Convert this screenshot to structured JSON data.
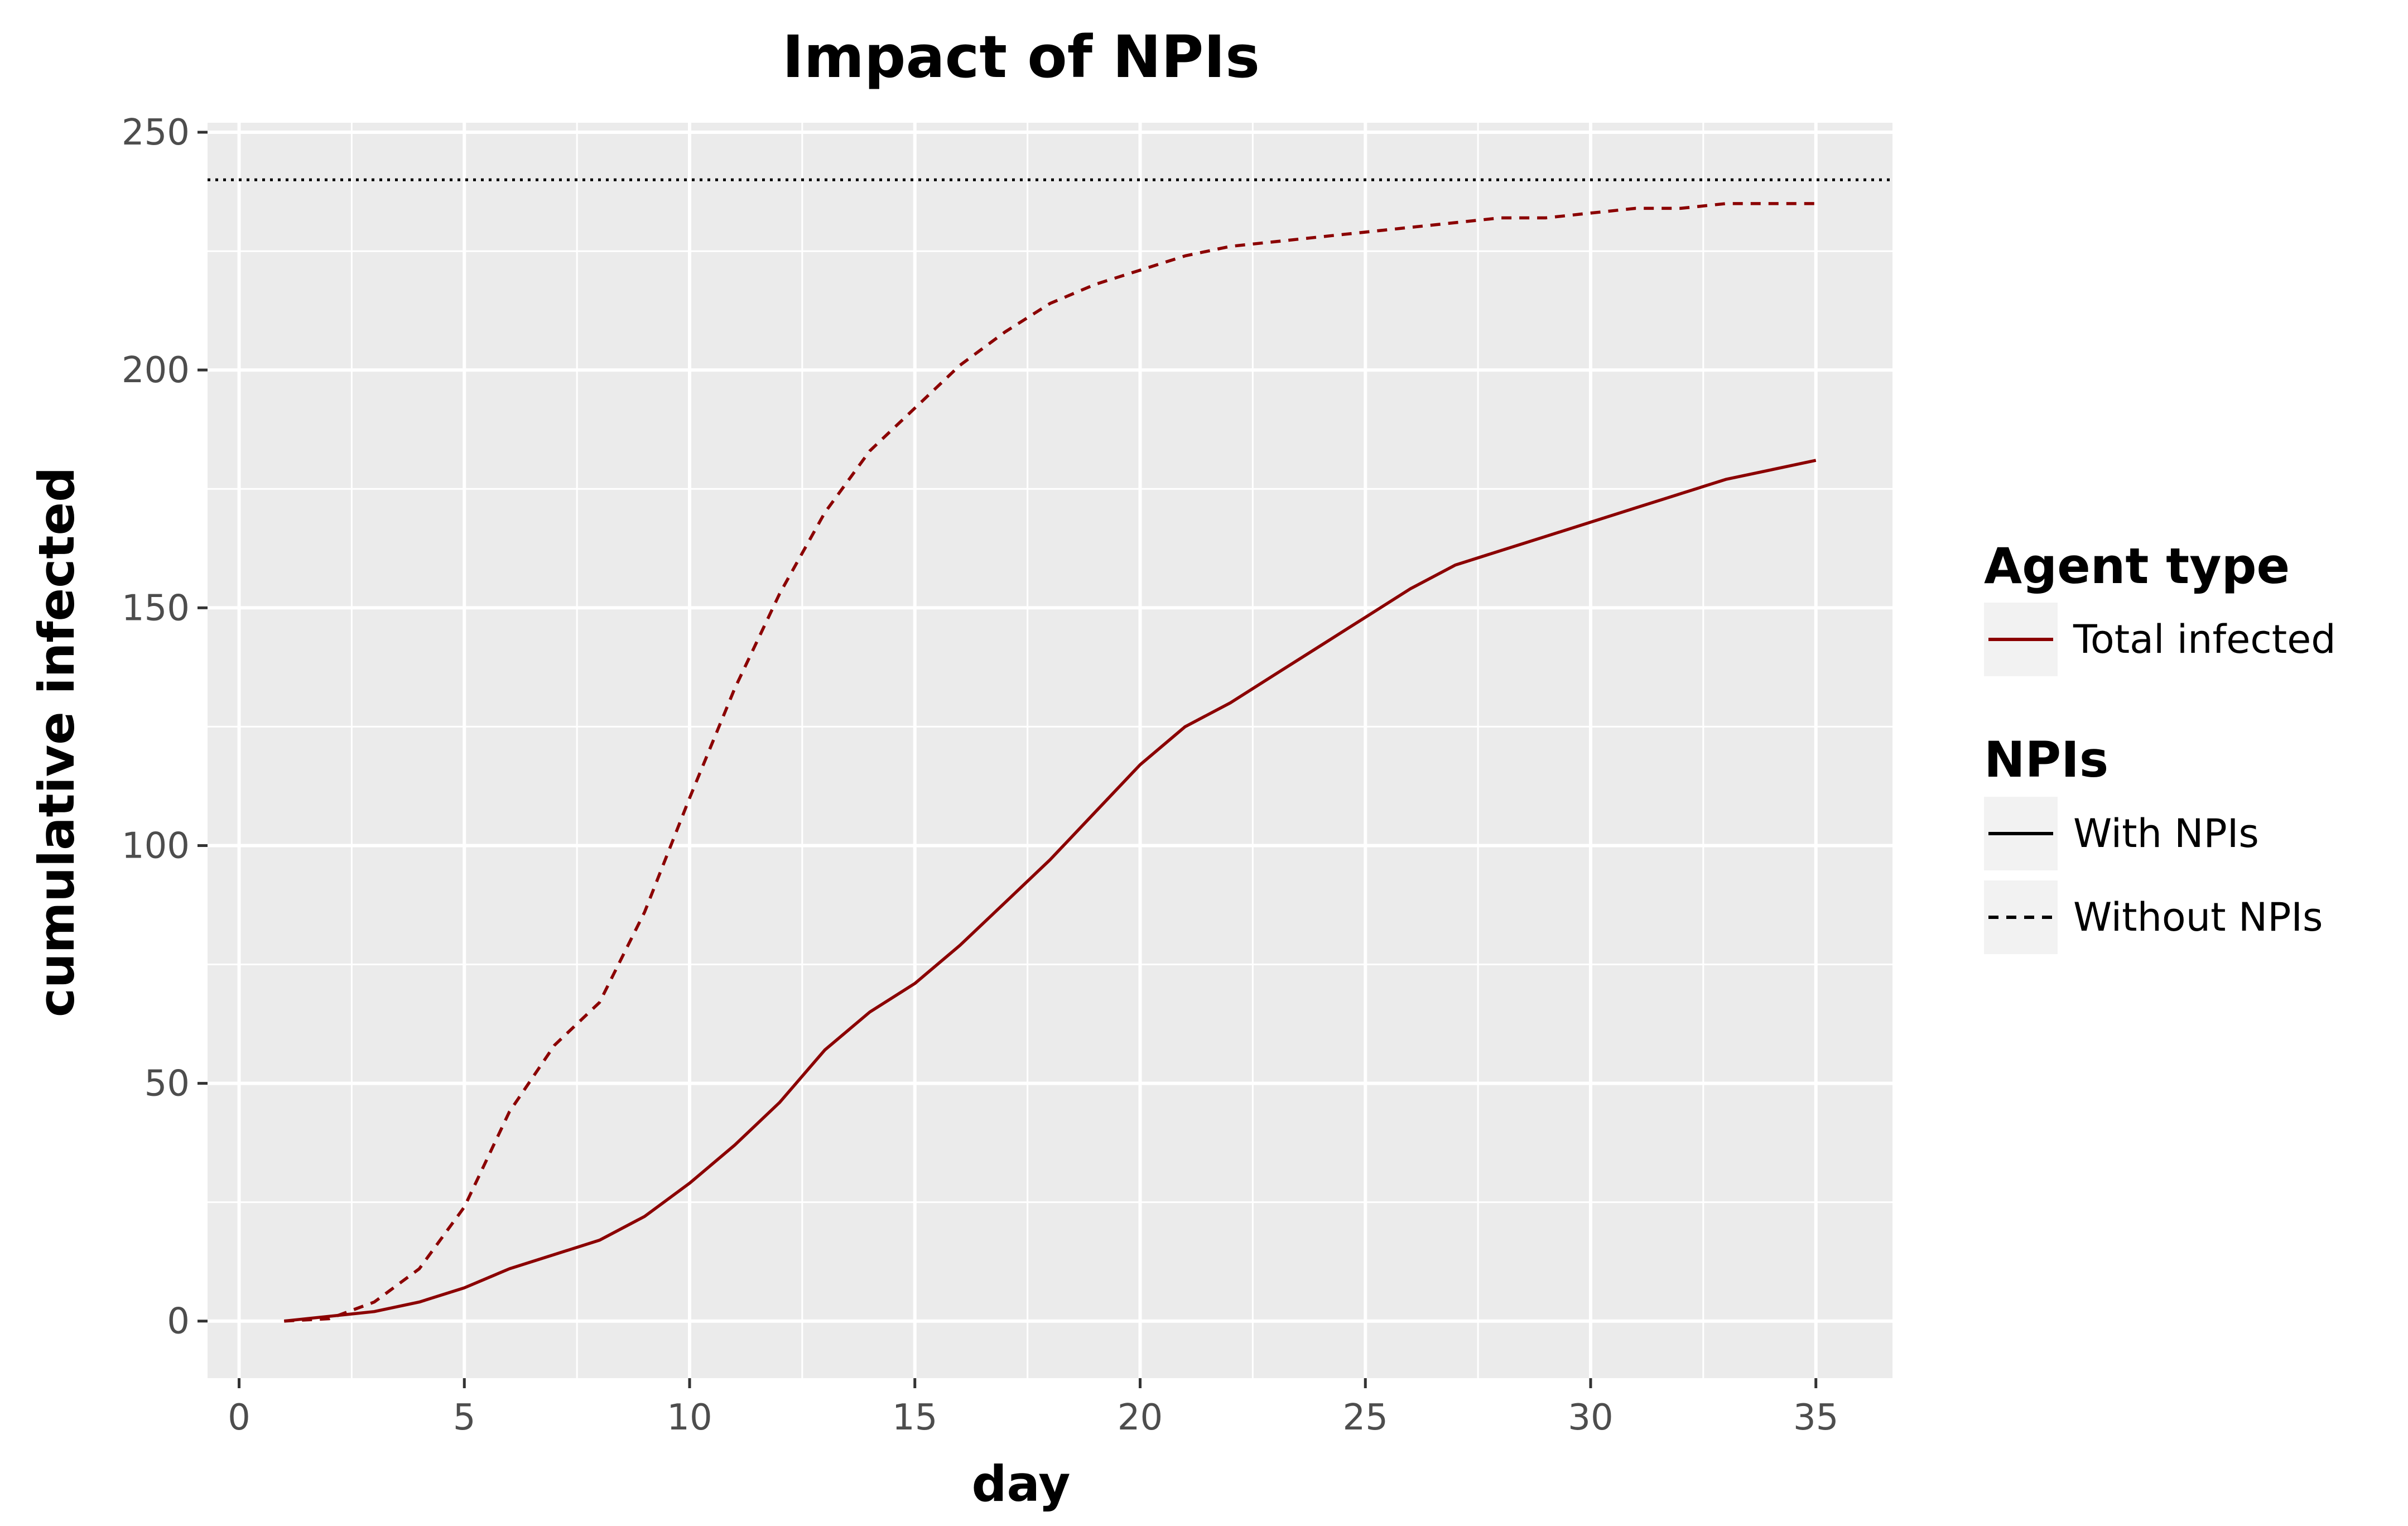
{
  "chart_data": {
    "type": "line",
    "title": "Impact of NPIs",
    "xlabel": "day",
    "ylabel": "cumulative infected",
    "xlim": [
      -0.7,
      36.7
    ],
    "ylim": [
      -12,
      252
    ],
    "x_ticks": [
      0,
      5,
      10,
      15,
      20,
      25,
      30,
      35
    ],
    "y_ticks": [
      0,
      50,
      100,
      150,
      200,
      250
    ],
    "grid": true,
    "background_color": "#ebebeb",
    "series_color": "#8b0000",
    "reference_line": {
      "y": 240,
      "style": "dotted",
      "color": "#000000"
    },
    "series": [
      {
        "name": "With NPIs",
        "agent_type": "Total infected",
        "linetype": "solid",
        "x": [
          1,
          2,
          3,
          4,
          5,
          6,
          7,
          8,
          9,
          10,
          11,
          12,
          13,
          14,
          15,
          16,
          17,
          18,
          19,
          20,
          21,
          22,
          23,
          24,
          25,
          26,
          27,
          28,
          29,
          30,
          31,
          32,
          33,
          34,
          35
        ],
        "values": [
          0,
          1,
          2,
          4,
          7,
          11,
          14,
          17,
          22,
          29,
          37,
          46,
          57,
          65,
          71,
          79,
          88,
          97,
          107,
          117,
          125,
          130,
          136,
          142,
          148,
          154,
          159,
          162,
          165,
          168,
          171,
          174,
          177,
          179,
          181
        ]
      },
      {
        "name": "Without NPIs",
        "agent_type": "Total infected",
        "linetype": "dashed",
        "x": [
          1,
          2,
          3,
          4,
          5,
          6,
          7,
          8,
          9,
          10,
          11,
          12,
          13,
          14,
          15,
          16,
          17,
          18,
          19,
          20,
          21,
          22,
          23,
          24,
          25,
          26,
          27,
          28,
          29,
          30,
          31,
          32,
          33,
          34,
          35
        ],
        "values": [
          0,
          0.5,
          4,
          11,
          24,
          44,
          58,
          67,
          86,
          110,
          133,
          153,
          170,
          183,
          192,
          201,
          208,
          214,
          218,
          221,
          224,
          226,
          227,
          228,
          229,
          230,
          231,
          232,
          232,
          233,
          234,
          234,
          235,
          235,
          235
        ]
      }
    ],
    "legend": {
      "placement": "right",
      "groups": [
        {
          "title": "Agent type",
          "items": [
            {
              "label": "Total infected",
              "linetype": "solid"
            }
          ]
        },
        {
          "title": "NPIs",
          "items": [
            {
              "label": "With NPIs",
              "linetype": "solid"
            },
            {
              "label": "Without NPIs",
              "linetype": "dashed"
            }
          ]
        }
      ]
    }
  }
}
